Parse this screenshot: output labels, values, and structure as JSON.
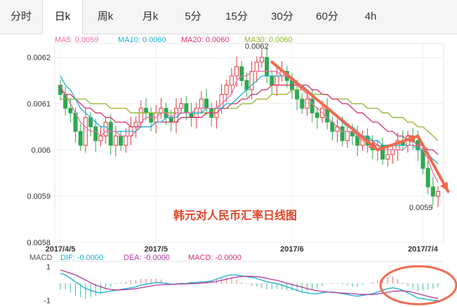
{
  "tabs": [
    {
      "label": "分时",
      "active": false
    },
    {
      "label": "日k",
      "active": true
    },
    {
      "label": "周k",
      "active": false
    },
    {
      "label": "月k",
      "active": false
    },
    {
      "label": "5分",
      "active": false
    },
    {
      "label": "15分",
      "active": false
    },
    {
      "label": "30分",
      "active": false
    },
    {
      "label": "60分",
      "active": false
    },
    {
      "label": "4h",
      "active": false
    }
  ],
  "ma_legend": [
    {
      "label": "MA5: 0.0059",
      "color": "#e86fa8"
    },
    {
      "label": "MA10: 0.0060",
      "color": "#1ab0d0"
    },
    {
      "label": "MA20: 0.0060",
      "color": "#d6336c"
    },
    {
      "label": "MA30: 0.0060",
      "color": "#8fb52a"
    }
  ],
  "macd_legend": {
    "title": "MACD",
    "items": [
      {
        "label": "DIF: -0.0000",
        "color": "#1ab0d0"
      },
      {
        "label": "DEA: -0.0000",
        "color": "#b23aa0"
      },
      {
        "label": "MACD: -0.0000",
        "color": "#d6336c"
      }
    ]
  },
  "watermark": "韩元对人民币汇率日线图",
  "colors": {
    "up": "#e03c3c",
    "down": "#2fa84f",
    "arrow": "#f06a4f",
    "circle": "#f06a4f"
  },
  "chart_data": {
    "type": "candlestick",
    "y_ticks": [
      "0.0062",
      "0.0061",
      "0.006",
      "0.0059",
      "0.0058"
    ],
    "ylim": [
      0.0058,
      0.00623
    ],
    "x_ticks": [
      "2017/4/5",
      "2017/5",
      "2017/6",
      "2017/7/4"
    ],
    "x_tick_index": [
      0,
      19,
      46,
      72
    ],
    "annotations": {
      "high_label": "0.0062",
      "low_label": "0.0059",
      "high_index": 40,
      "low_index": 74
    },
    "close": [
      0.00612,
      0.00609,
      0.00608,
      0.00604,
      0.00601,
      0.00607,
      0.00605,
      0.00602,
      0.00603,
      0.00606,
      0.00601,
      0.00603,
      0.00601,
      0.00603,
      0.00605,
      0.00606,
      0.00609,
      0.00608,
      0.00606,
      0.00608,
      0.00609,
      0.00607,
      0.00606,
      0.00609,
      0.0061,
      0.00608,
      0.00607,
      0.00609,
      0.00611,
      0.00609,
      0.00607,
      0.00609,
      0.00612,
      0.00614,
      0.00616,
      0.00618,
      0.00615,
      0.00613,
      0.00617,
      0.00619,
      0.0062,
      0.00616,
      0.00614,
      0.00616,
      0.00617,
      0.00615,
      0.00613,
      0.00611,
      0.00609,
      0.00611,
      0.00608,
      0.00607,
      0.00609,
      0.00606,
      0.00604,
      0.00605,
      0.00602,
      0.00604,
      0.00603,
      0.00601,
      0.00603,
      0.00601,
      0.006,
      0.00601,
      0.00598,
      0.00599,
      0.006,
      0.00602,
      0.00601,
      0.00603,
      0.00602,
      0.006,
      0.00596,
      0.00592,
      0.0059,
      0.00591
    ],
    "ma5": [
      0.00614,
      0.00612,
      0.0061,
      0.00608,
      0.00606,
      0.00605,
      0.00604,
      0.00604,
      0.00603,
      0.00604,
      0.00604,
      0.00604,
      0.00603,
      0.00603,
      0.00603,
      0.00604,
      0.00606,
      0.00607,
      0.00607,
      0.00607,
      0.00608,
      0.00608,
      0.00607,
      0.00608,
      0.00608,
      0.00608,
      0.00608,
      0.00609,
      0.00609,
      0.00609,
      0.00609,
      0.00609,
      0.0061,
      0.00611,
      0.00612,
      0.00615,
      0.00616,
      0.00616,
      0.00617,
      0.00617,
      0.00617,
      0.00617,
      0.00617,
      0.00617,
      0.00616,
      0.00616,
      0.00615,
      0.00614,
      0.00613,
      0.00612,
      0.0061,
      0.00609,
      0.00608,
      0.00607,
      0.00606,
      0.00605,
      0.00604,
      0.00604,
      0.00604,
      0.00603,
      0.00602,
      0.00602,
      0.00602,
      0.00601,
      0.006,
      0.006,
      0.006,
      0.006,
      0.006,
      0.00601,
      0.00601,
      0.00601,
      0.006,
      0.00598,
      0.00595,
      0.00593
    ],
    "ma10": [
      0.00616,
      0.00614,
      0.00613,
      0.00611,
      0.00609,
      0.00608,
      0.00607,
      0.00606,
      0.00605,
      0.00605,
      0.00604,
      0.00604,
      0.00604,
      0.00604,
      0.00604,
      0.00604,
      0.00605,
      0.00605,
      0.00605,
      0.00606,
      0.00606,
      0.00607,
      0.00607,
      0.00607,
      0.00608,
      0.00608,
      0.00608,
      0.00608,
      0.00608,
      0.00609,
      0.00609,
      0.00609,
      0.00609,
      0.0061,
      0.0061,
      0.00611,
      0.00612,
      0.00613,
      0.00614,
      0.00615,
      0.00616,
      0.00616,
      0.00616,
      0.00616,
      0.00616,
      0.00616,
      0.00615,
      0.00614,
      0.00614,
      0.00613,
      0.00612,
      0.00611,
      0.0061,
      0.00609,
      0.00608,
      0.00607,
      0.00606,
      0.00605,
      0.00605,
      0.00604,
      0.00603,
      0.00603,
      0.00602,
      0.00602,
      0.00601,
      0.00601,
      0.00601,
      0.00601,
      0.00601,
      0.00601,
      0.00601,
      0.006,
      0.006,
      0.00599,
      0.00598,
      0.00597
    ],
    "ma20": [
      0.00613,
      0.00612,
      0.00612,
      0.00611,
      0.0061,
      0.00609,
      0.00609,
      0.00608,
      0.00608,
      0.00607,
      0.00607,
      0.00606,
      0.00606,
      0.00606,
      0.00605,
      0.00605,
      0.00605,
      0.00605,
      0.00605,
      0.00606,
      0.00606,
      0.00606,
      0.00606,
      0.00606,
      0.00607,
      0.00607,
      0.00607,
      0.00607,
      0.00607,
      0.00608,
      0.00608,
      0.00608,
      0.00609,
      0.00609,
      0.0061,
      0.0061,
      0.00611,
      0.00611,
      0.00612,
      0.00612,
      0.00613,
      0.00613,
      0.00614,
      0.00614,
      0.00614,
      0.00614,
      0.00614,
      0.00614,
      0.00614,
      0.00614,
      0.00613,
      0.00613,
      0.00612,
      0.00612,
      0.00611,
      0.00611,
      0.0061,
      0.0061,
      0.00609,
      0.00608,
      0.00608,
      0.00607,
      0.00606,
      0.00606,
      0.00605,
      0.00604,
      0.00604,
      0.00603,
      0.00603,
      0.00602,
      0.00602,
      0.00601,
      0.00601,
      0.006,
      0.006,
      0.00599
    ],
    "ma30": [
      0.00611,
      0.00611,
      0.00611,
      0.00611,
      0.00611,
      0.00611,
      0.0061,
      0.0061,
      0.0061,
      0.0061,
      0.00609,
      0.00609,
      0.00609,
      0.00609,
      0.00608,
      0.00608,
      0.00608,
      0.00608,
      0.00608,
      0.00608,
      0.00608,
      0.00608,
      0.00608,
      0.00608,
      0.00608,
      0.00608,
      0.00608,
      0.00608,
      0.00608,
      0.00608,
      0.00608,
      0.00609,
      0.00609,
      0.00609,
      0.00609,
      0.00609,
      0.0061,
      0.0061,
      0.0061,
      0.00611,
      0.00611,
      0.00611,
      0.00612,
      0.00612,
      0.00612,
      0.00612,
      0.00613,
      0.00613,
      0.00613,
      0.00613,
      0.00612,
      0.00612,
      0.00612,
      0.00612,
      0.00611,
      0.00611,
      0.00611,
      0.00611,
      0.0061,
      0.0061,
      0.0061,
      0.00609,
      0.00609,
      0.00609,
      0.00608,
      0.00608,
      0.00607,
      0.00607,
      0.00607,
      0.00606,
      0.00606,
      0.00605,
      0.00605,
      0.00604,
      0.00603,
      0.00602
    ],
    "macd_ticks": [
      "1",
      "-1"
    ],
    "macd_ylim": [
      -1.3,
      1.3
    ],
    "dif": [
      0.6,
      0.5,
      0.3,
      0.1,
      -0.1,
      -0.3,
      -0.4,
      -0.5,
      -0.55,
      -0.5,
      -0.45,
      -0.4,
      -0.35,
      -0.3,
      -0.25,
      -0.2,
      -0.1,
      -0.05,
      0.0,
      0.05,
      0.05,
      0.0,
      -0.05,
      -0.05,
      0.0,
      0.0,
      0.05,
      0.05,
      0.1,
      0.1,
      0.15,
      0.25,
      0.35,
      0.45,
      0.5,
      0.5,
      0.45,
      0.4,
      0.35,
      0.3,
      0.2,
      0.1,
      0.05,
      0.0,
      -0.1,
      -0.2,
      -0.3,
      -0.4,
      -0.5,
      -0.55,
      -0.6,
      -0.6,
      -0.55,
      -0.5,
      -0.5,
      -0.55,
      -0.6,
      -0.65,
      -0.7,
      -0.75,
      -0.7,
      -0.65,
      -0.6,
      -0.5,
      -0.4,
      -0.3,
      -0.25,
      -0.3,
      -0.4,
      -0.55,
      -0.7,
      -0.85,
      -0.9,
      -0.95,
      -1.0,
      -1.0
    ],
    "dea": [
      0.8,
      0.7,
      0.6,
      0.5,
      0.35,
      0.2,
      0.05,
      -0.1,
      -0.2,
      -0.3,
      -0.35,
      -0.38,
      -0.38,
      -0.36,
      -0.34,
      -0.3,
      -0.25,
      -0.2,
      -0.15,
      -0.1,
      -0.08,
      -0.06,
      -0.05,
      -0.04,
      -0.03,
      -0.02,
      -0.01,
      0.0,
      0.02,
      0.05,
      0.08,
      0.12,
      0.18,
      0.25,
      0.32,
      0.38,
      0.41,
      0.42,
      0.42,
      0.4,
      0.36,
      0.3,
      0.24,
      0.18,
      0.1,
      0.02,
      -0.06,
      -0.14,
      -0.22,
      -0.3,
      -0.37,
      -0.43,
      -0.47,
      -0.5,
      -0.52,
      -0.54,
      -0.56,
      -0.58,
      -0.6,
      -0.63,
      -0.65,
      -0.65,
      -0.64,
      -0.61,
      -0.57,
      -0.52,
      -0.47,
      -0.44,
      -0.44,
      -0.47,
      -0.52,
      -0.6,
      -0.68,
      -0.75,
      -0.82,
      -0.88
    ]
  }
}
